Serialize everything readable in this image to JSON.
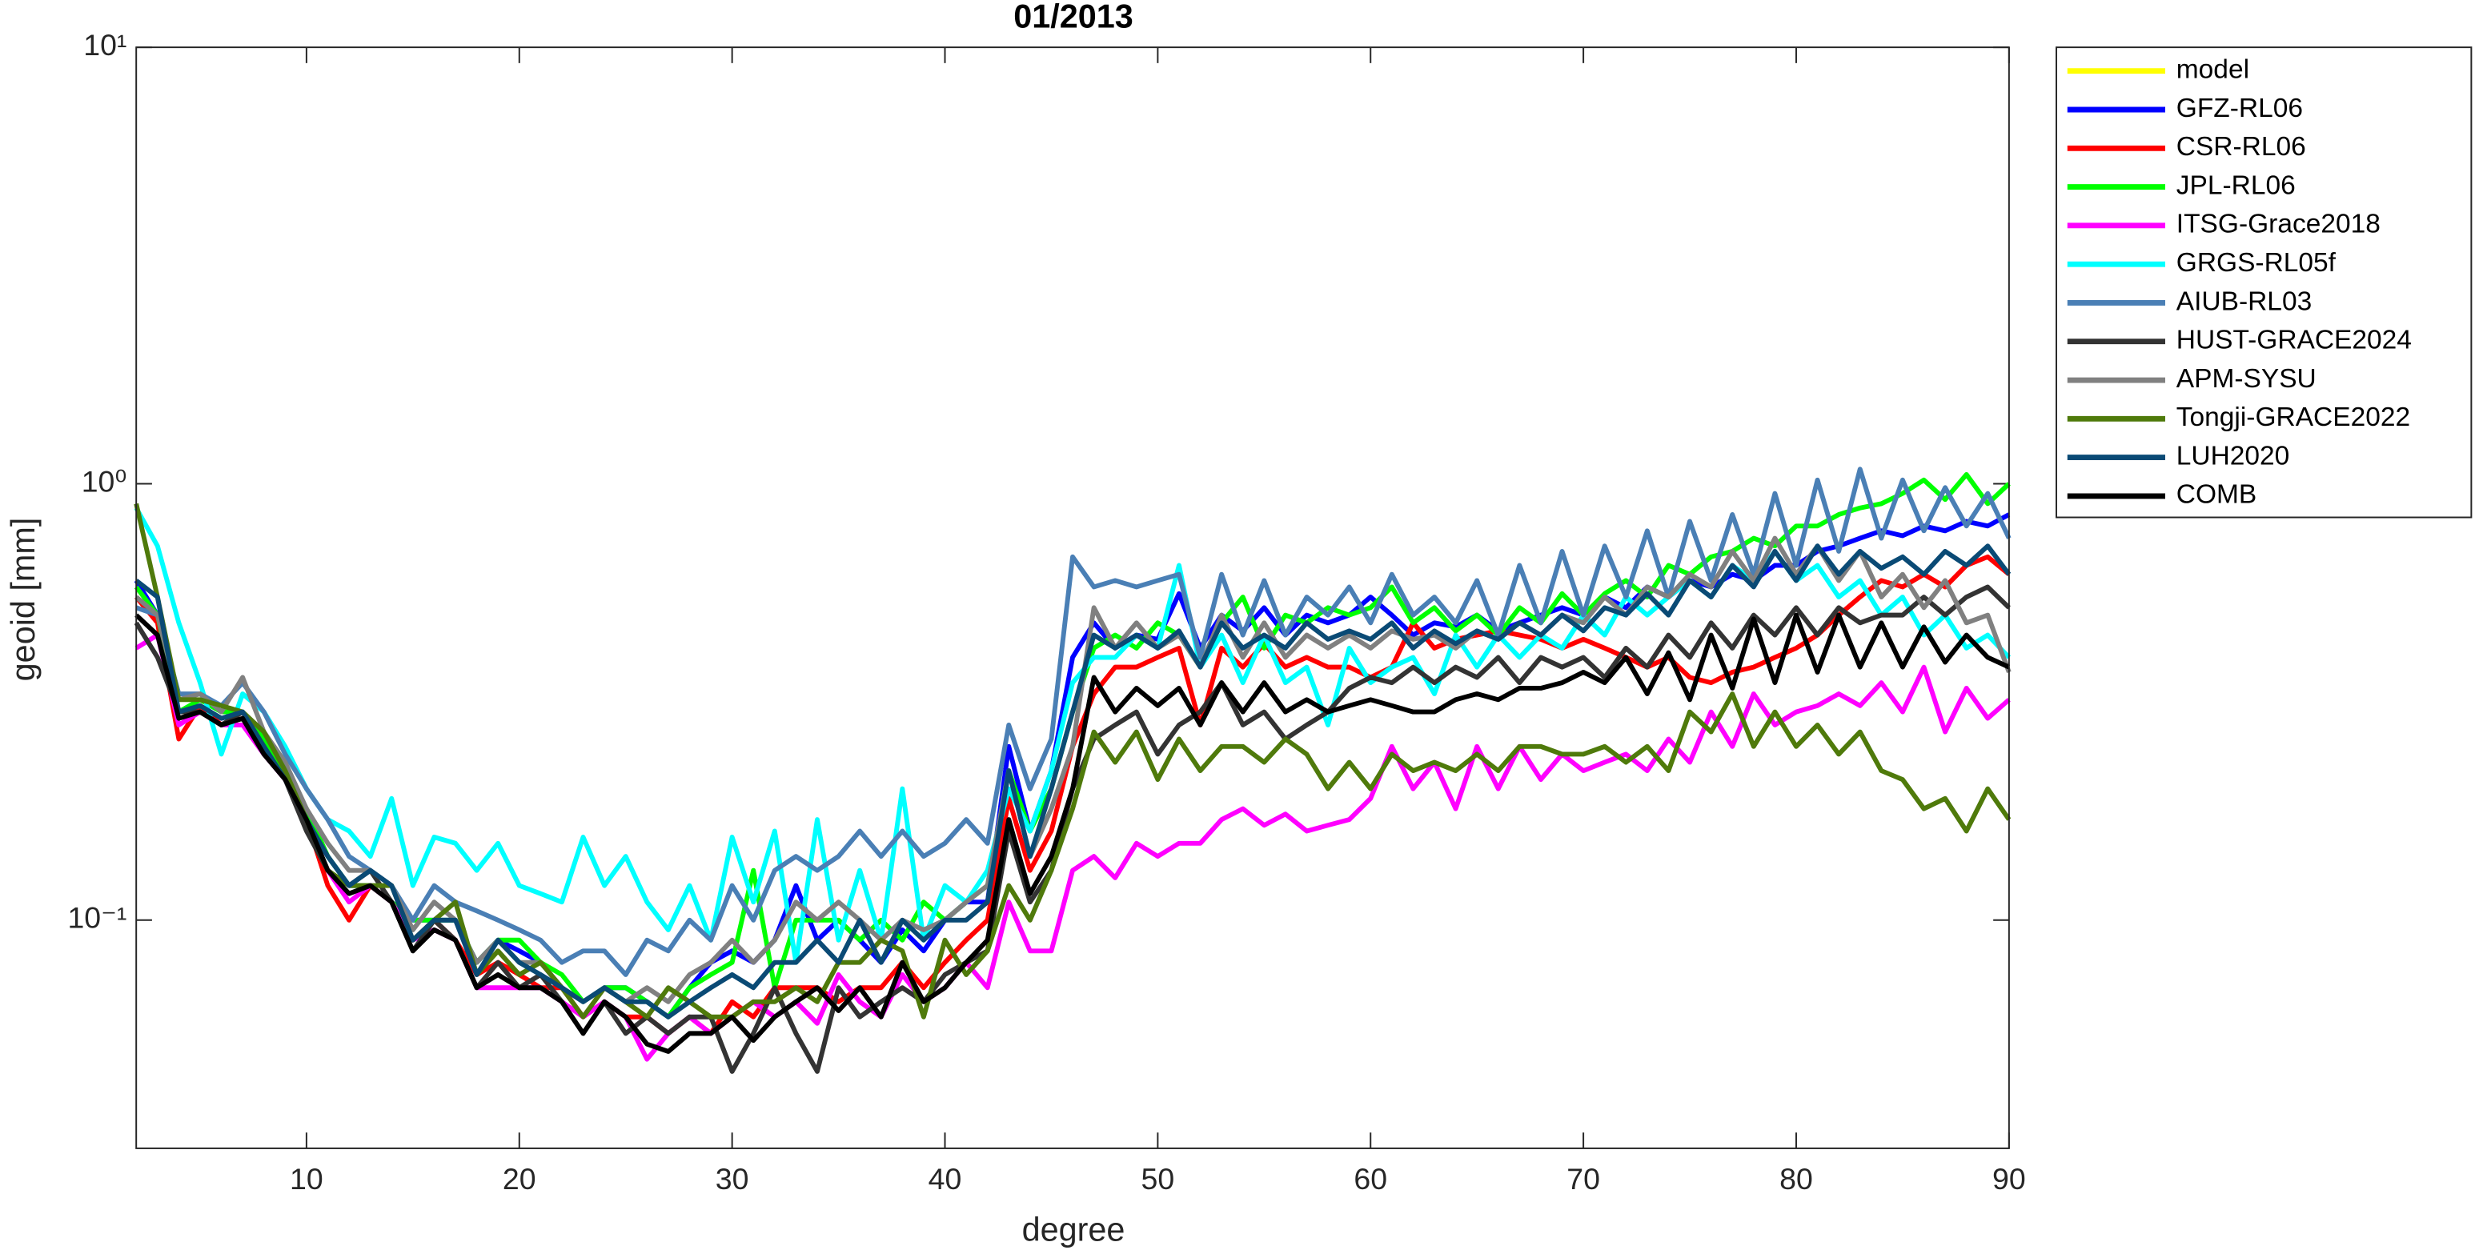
{
  "chart_data": {
    "type": "line",
    "title": "01/2013",
    "xlabel": "degree",
    "ylabel": "geoid [mm]",
    "ylog": true,
    "xlim": [
      2,
      90
    ],
    "ylim": [
      0.03,
      10
    ],
    "xticks": [
      10,
      20,
      30,
      40,
      50,
      60,
      70,
      80,
      90
    ],
    "yticks": [
      {
        "value": 0.1,
        "label": "10⁻¹"
      },
      {
        "value": 1,
        "label": "10⁰"
      },
      {
        "value": 10,
        "label": "10¹"
      }
    ],
    "legend": "outside-right",
    "x": [
      2,
      3,
      4,
      5,
      6,
      7,
      8,
      9,
      10,
      11,
      12,
      13,
      14,
      15,
      16,
      17,
      18,
      19,
      20,
      21,
      22,
      23,
      24,
      25,
      26,
      27,
      28,
      29,
      30,
      31,
      32,
      33,
      34,
      35,
      36,
      37,
      38,
      39,
      40,
      41,
      42,
      43,
      44,
      45,
      46,
      47,
      48,
      49,
      50,
      51,
      52,
      53,
      54,
      55,
      56,
      57,
      58,
      59,
      60,
      61,
      62,
      63,
      64,
      65,
      66,
      67,
      68,
      69,
      70,
      71,
      72,
      73,
      74,
      75,
      76,
      77,
      78,
      79,
      80,
      81,
      82,
      83,
      84,
      85,
      86,
      87,
      88,
      89,
      90
    ],
    "series": [
      {
        "name": "model",
        "color": "#ffff00",
        "values": [
          null,
          null,
          null,
          null,
          null,
          null,
          null,
          null,
          null,
          null,
          null,
          null,
          null,
          null,
          null,
          null,
          null,
          null,
          null,
          null,
          null,
          null,
          null,
          null,
          null,
          null,
          null,
          null,
          null,
          null,
          null,
          null,
          null,
          null,
          null,
          null,
          null,
          null,
          null,
          null,
          null,
          null,
          null,
          null,
          null,
          null,
          null,
          null,
          null,
          null,
          null,
          null,
          null,
          null,
          null,
          null,
          null,
          null,
          null,
          null,
          null,
          null,
          null,
          null,
          null,
          null,
          null,
          null,
          null,
          null,
          null,
          null,
          null,
          null,
          null,
          null,
          null,
          null,
          null,
          null,
          null,
          null,
          null,
          null,
          null,
          null,
          null,
          null,
          null
        ]
      },
      {
        "name": "GFZ-RL06",
        "color": "#0000ff",
        "values": [
          0.6,
          0.5,
          0.3,
          0.31,
          0.29,
          0.3,
          0.25,
          0.22,
          0.17,
          0.14,
          0.12,
          0.12,
          0.11,
          0.1,
          0.1,
          0.1,
          0.08,
          0.09,
          0.085,
          0.08,
          0.07,
          0.065,
          0.07,
          0.07,
          0.065,
          0.06,
          0.07,
          0.08,
          0.085,
          0.08,
          0.09,
          0.12,
          0.09,
          0.1,
          0.09,
          0.08,
          0.095,
          0.085,
          0.1,
          0.11,
          0.11,
          0.25,
          0.16,
          0.22,
          0.4,
          0.48,
          0.42,
          0.45,
          0.44,
          0.56,
          0.42,
          0.5,
          0.46,
          0.52,
          0.45,
          0.5,
          0.48,
          0.5,
          0.55,
          0.5,
          0.45,
          0.48,
          0.47,
          0.5,
          0.46,
          0.48,
          0.5,
          0.52,
          0.5,
          0.55,
          0.52,
          0.58,
          0.55,
          0.6,
          0.58,
          0.62,
          0.6,
          0.65,
          0.65,
          0.7,
          0.72,
          0.75,
          0.78,
          0.76,
          0.8,
          0.78,
          0.82,
          0.8,
          0.85
        ]
      },
      {
        "name": "CSR-RL06",
        "color": "#ff0000",
        "values": [
          0.55,
          0.48,
          0.26,
          0.31,
          0.28,
          0.29,
          0.26,
          0.21,
          0.17,
          0.12,
          0.1,
          0.12,
          0.11,
          0.09,
          0.1,
          0.09,
          0.075,
          0.08,
          0.075,
          0.07,
          0.07,
          0.06,
          0.065,
          0.06,
          0.06,
          0.055,
          0.06,
          0.055,
          0.065,
          0.06,
          0.07,
          0.07,
          0.07,
          0.065,
          0.07,
          0.07,
          0.08,
          0.07,
          0.08,
          0.09,
          0.1,
          0.19,
          0.13,
          0.16,
          0.25,
          0.33,
          0.38,
          0.38,
          0.4,
          0.42,
          0.28,
          0.42,
          0.38,
          0.43,
          0.38,
          0.4,
          0.38,
          0.38,
          0.36,
          0.38,
          0.48,
          0.42,
          0.44,
          0.45,
          0.46,
          0.45,
          0.44,
          0.42,
          0.44,
          0.42,
          0.4,
          0.38,
          0.4,
          0.36,
          0.35,
          0.37,
          0.38,
          0.4,
          0.42,
          0.45,
          0.5,
          0.55,
          0.6,
          0.58,
          0.62,
          0.58,
          0.65,
          0.68,
          0.62
        ]
      },
      {
        "name": "JPL-RL06",
        "color": "#00ff00",
        "values": [
          0.58,
          0.5,
          0.3,
          0.32,
          0.3,
          0.3,
          0.26,
          0.22,
          0.18,
          0.14,
          0.12,
          0.12,
          0.11,
          0.1,
          0.1,
          0.1,
          0.08,
          0.09,
          0.09,
          0.08,
          0.075,
          0.065,
          0.07,
          0.07,
          0.065,
          0.06,
          0.07,
          0.075,
          0.08,
          0.13,
          0.07,
          0.1,
          0.1,
          0.1,
          0.09,
          0.1,
          0.09,
          0.11,
          0.1,
          0.11,
          0.12,
          0.22,
          0.16,
          0.2,
          0.3,
          0.42,
          0.45,
          0.42,
          0.48,
          0.45,
          0.38,
          0.48,
          0.55,
          0.42,
          0.5,
          0.48,
          0.52,
          0.5,
          0.52,
          0.58,
          0.48,
          0.52,
          0.46,
          0.5,
          0.45,
          0.52,
          0.48,
          0.56,
          0.5,
          0.56,
          0.6,
          0.55,
          0.65,
          0.62,
          0.68,
          0.7,
          0.75,
          0.72,
          0.8,
          0.8,
          0.85,
          0.88,
          0.9,
          0.95,
          1.02,
          0.92,
          1.05,
          0.9,
          1.0
        ]
      },
      {
        "name": "ITSG-Grace2018",
        "color": "#ff00ff",
        "values": [
          0.42,
          0.45,
          0.28,
          0.3,
          0.28,
          0.28,
          0.24,
          0.21,
          0.17,
          0.13,
          0.11,
          0.12,
          0.11,
          0.09,
          0.095,
          0.09,
          0.07,
          0.07,
          0.07,
          0.07,
          0.065,
          0.06,
          0.065,
          0.06,
          0.048,
          0.055,
          0.06,
          0.055,
          0.06,
          0.065,
          0.06,
          0.065,
          0.058,
          0.075,
          0.065,
          0.06,
          0.075,
          0.065,
          0.07,
          0.08,
          0.07,
          0.11,
          0.085,
          0.085,
          0.13,
          0.14,
          0.125,
          0.15,
          0.14,
          0.15,
          0.15,
          0.17,
          0.18,
          0.165,
          0.175,
          0.16,
          0.165,
          0.17,
          0.19,
          0.25,
          0.2,
          0.23,
          0.18,
          0.25,
          0.2,
          0.25,
          0.21,
          0.24,
          0.22,
          0.23,
          0.24,
          0.22,
          0.26,
          0.23,
          0.3,
          0.25,
          0.33,
          0.28,
          0.3,
          0.31,
          0.33,
          0.31,
          0.35,
          0.3,
          0.38,
          0.27,
          0.34,
          0.29,
          0.32
        ]
      },
      {
        "name": "GRGS-RL05f",
        "color": "#00ffff",
        "values": [
          0.88,
          0.72,
          0.48,
          0.35,
          0.24,
          0.33,
          0.3,
          0.25,
          0.2,
          0.17,
          0.16,
          0.14,
          0.19,
          0.12,
          0.155,
          0.15,
          0.13,
          0.15,
          0.12,
          0.115,
          0.11,
          0.155,
          0.12,
          0.14,
          0.11,
          0.095,
          0.12,
          0.09,
          0.155,
          0.11,
          0.16,
          0.08,
          0.17,
          0.09,
          0.13,
          0.09,
          0.2,
          0.09,
          0.12,
          0.11,
          0.13,
          0.2,
          0.16,
          0.22,
          0.35,
          0.4,
          0.4,
          0.45,
          0.42,
          0.65,
          0.38,
          0.45,
          0.35,
          0.45,
          0.35,
          0.38,
          0.28,
          0.42,
          0.35,
          0.38,
          0.4,
          0.33,
          0.45,
          0.38,
          0.45,
          0.4,
          0.45,
          0.42,
          0.5,
          0.45,
          0.55,
          0.5,
          0.55,
          0.6,
          0.55,
          0.65,
          0.6,
          0.7,
          0.6,
          0.65,
          0.55,
          0.6,
          0.5,
          0.55,
          0.45,
          0.5,
          0.42,
          0.45,
          0.4
        ]
      },
      {
        "name": "AIUB-RL03",
        "color": "#4a7fb5",
        "values": [
          0.52,
          0.5,
          0.33,
          0.33,
          0.31,
          0.35,
          0.3,
          0.24,
          0.2,
          0.17,
          0.14,
          0.13,
          0.12,
          0.1,
          0.12,
          0.11,
          0.105,
          0.1,
          0.095,
          0.09,
          0.08,
          0.085,
          0.085,
          0.075,
          0.09,
          0.085,
          0.1,
          0.09,
          0.12,
          0.1,
          0.13,
          0.14,
          0.13,
          0.14,
          0.16,
          0.14,
          0.16,
          0.14,
          0.15,
          0.17,
          0.15,
          0.28,
          0.2,
          0.26,
          0.68,
          0.58,
          0.6,
          0.58,
          0.6,
          0.62,
          0.4,
          0.62,
          0.45,
          0.6,
          0.45,
          0.55,
          0.5,
          0.58,
          0.48,
          0.62,
          0.5,
          0.55,
          0.48,
          0.6,
          0.45,
          0.65,
          0.48,
          0.7,
          0.5,
          0.72,
          0.55,
          0.78,
          0.55,
          0.82,
          0.6,
          0.85,
          0.62,
          0.95,
          0.65,
          1.02,
          0.7,
          1.08,
          0.75,
          1.02,
          0.78,
          0.98,
          0.8,
          0.95,
          0.75
        ]
      },
      {
        "name": "HUST-GRACE2024",
        "color": "#333333",
        "values": [
          0.48,
          0.4,
          0.3,
          0.3,
          0.28,
          0.3,
          0.25,
          0.21,
          0.16,
          0.13,
          0.12,
          0.13,
          0.11,
          0.085,
          0.1,
          0.09,
          0.07,
          0.08,
          0.07,
          0.075,
          0.065,
          0.055,
          0.065,
          0.055,
          0.06,
          0.055,
          0.06,
          0.06,
          0.045,
          0.055,
          0.07,
          0.055,
          0.045,
          0.07,
          0.06,
          0.065,
          0.07,
          0.065,
          0.075,
          0.08,
          0.085,
          0.16,
          0.11,
          0.13,
          0.2,
          0.26,
          0.28,
          0.3,
          0.24,
          0.28,
          0.3,
          0.35,
          0.28,
          0.3,
          0.26,
          0.28,
          0.3,
          0.34,
          0.36,
          0.35,
          0.38,
          0.35,
          0.38,
          0.36,
          0.4,
          0.35,
          0.4,
          0.38,
          0.4,
          0.36,
          0.42,
          0.38,
          0.45,
          0.4,
          0.48,
          0.42,
          0.5,
          0.45,
          0.52,
          0.45,
          0.52,
          0.48,
          0.5,
          0.5,
          0.55,
          0.5,
          0.55,
          0.58,
          0.52
        ]
      },
      {
        "name": "APM-SYSU",
        "color": "#808080",
        "values": [
          0.55,
          0.5,
          0.32,
          0.33,
          0.3,
          0.36,
          0.27,
          0.23,
          0.18,
          0.15,
          0.13,
          0.13,
          0.12,
          0.095,
          0.11,
          0.1,
          0.08,
          0.09,
          0.08,
          0.08,
          0.07,
          0.065,
          0.07,
          0.065,
          0.07,
          0.065,
          0.075,
          0.08,
          0.09,
          0.08,
          0.09,
          0.11,
          0.1,
          0.11,
          0.1,
          0.09,
          0.1,
          0.095,
          0.1,
          0.11,
          0.12,
          0.22,
          0.14,
          0.18,
          0.25,
          0.52,
          0.42,
          0.48,
          0.42,
          0.45,
          0.38,
          0.5,
          0.4,
          0.48,
          0.4,
          0.45,
          0.42,
          0.45,
          0.42,
          0.46,
          0.44,
          0.45,
          0.42,
          0.46,
          0.44,
          0.48,
          0.45,
          0.5,
          0.48,
          0.55,
          0.5,
          0.58,
          0.55,
          0.62,
          0.58,
          0.7,
          0.6,
          0.75,
          0.62,
          0.72,
          0.6,
          0.7,
          0.55,
          0.62,
          0.52,
          0.6,
          0.48,
          0.5,
          0.37
        ]
      },
      {
        "name": "Tongji-GRACE2022",
        "color": "#4f7a0b",
        "values": [
          0.9,
          0.55,
          0.32,
          0.32,
          0.31,
          0.3,
          0.27,
          0.22,
          0.17,
          0.13,
          0.12,
          0.12,
          0.12,
          0.09,
          0.1,
          0.11,
          0.075,
          0.085,
          0.075,
          0.08,
          0.07,
          0.06,
          0.07,
          0.065,
          0.06,
          0.07,
          0.065,
          0.06,
          0.06,
          0.065,
          0.065,
          0.07,
          0.065,
          0.08,
          0.08,
          0.09,
          0.085,
          0.06,
          0.09,
          0.075,
          0.085,
          0.12,
          0.1,
          0.13,
          0.18,
          0.27,
          0.23,
          0.27,
          0.21,
          0.26,
          0.22,
          0.25,
          0.25,
          0.23,
          0.26,
          0.24,
          0.2,
          0.23,
          0.2,
          0.24,
          0.22,
          0.23,
          0.22,
          0.24,
          0.22,
          0.25,
          0.25,
          0.24,
          0.24,
          0.25,
          0.23,
          0.25,
          0.22,
          0.3,
          0.27,
          0.33,
          0.25,
          0.3,
          0.25,
          0.28,
          0.24,
          0.27,
          0.22,
          0.21,
          0.18,
          0.19,
          0.16,
          0.2,
          0.17
        ]
      },
      {
        "name": "LUH2020",
        "color": "#0a4a75",
        "values": [
          0.6,
          0.55,
          0.3,
          0.31,
          0.29,
          0.3,
          0.25,
          0.21,
          0.17,
          0.14,
          0.12,
          0.13,
          0.12,
          0.09,
          0.1,
          0.1,
          0.075,
          0.09,
          0.08,
          0.075,
          0.07,
          0.065,
          0.07,
          0.065,
          0.065,
          0.06,
          0.065,
          0.07,
          0.075,
          0.07,
          0.08,
          0.08,
          0.09,
          0.08,
          0.1,
          0.08,
          0.1,
          0.09,
          0.1,
          0.1,
          0.11,
          0.22,
          0.14,
          0.2,
          0.3,
          0.45,
          0.42,
          0.45,
          0.42,
          0.46,
          0.38,
          0.48,
          0.42,
          0.45,
          0.42,
          0.48,
          0.44,
          0.46,
          0.44,
          0.48,
          0.42,
          0.46,
          0.43,
          0.46,
          0.44,
          0.48,
          0.45,
          0.5,
          0.46,
          0.52,
          0.5,
          0.56,
          0.5,
          0.6,
          0.55,
          0.65,
          0.58,
          0.7,
          0.6,
          0.72,
          0.62,
          0.7,
          0.64,
          0.68,
          0.62,
          0.7,
          0.65,
          0.72,
          0.62
        ]
      },
      {
        "name": "COMB",
        "color": "#000000",
        "values": [
          0.5,
          0.45,
          0.29,
          0.3,
          0.28,
          0.29,
          0.24,
          0.21,
          0.17,
          0.13,
          0.115,
          0.12,
          0.11,
          0.085,
          0.095,
          0.09,
          0.07,
          0.075,
          0.07,
          0.07,
          0.065,
          0.055,
          0.065,
          0.06,
          0.052,
          0.05,
          0.055,
          0.055,
          0.06,
          0.053,
          0.06,
          0.065,
          0.07,
          0.062,
          0.07,
          0.06,
          0.08,
          0.065,
          0.07,
          0.08,
          0.09,
          0.17,
          0.115,
          0.14,
          0.2,
          0.36,
          0.3,
          0.34,
          0.31,
          0.34,
          0.28,
          0.35,
          0.3,
          0.35,
          0.3,
          0.32,
          0.3,
          0.31,
          0.32,
          0.31,
          0.3,
          0.3,
          0.32,
          0.33,
          0.32,
          0.34,
          0.34,
          0.35,
          0.37,
          0.35,
          0.4,
          0.33,
          0.41,
          0.32,
          0.45,
          0.34,
          0.49,
          0.35,
          0.5,
          0.37,
          0.5,
          0.38,
          0.48,
          0.38,
          0.47,
          0.39,
          0.45,
          0.4,
          0.38
        ]
      }
    ]
  }
}
